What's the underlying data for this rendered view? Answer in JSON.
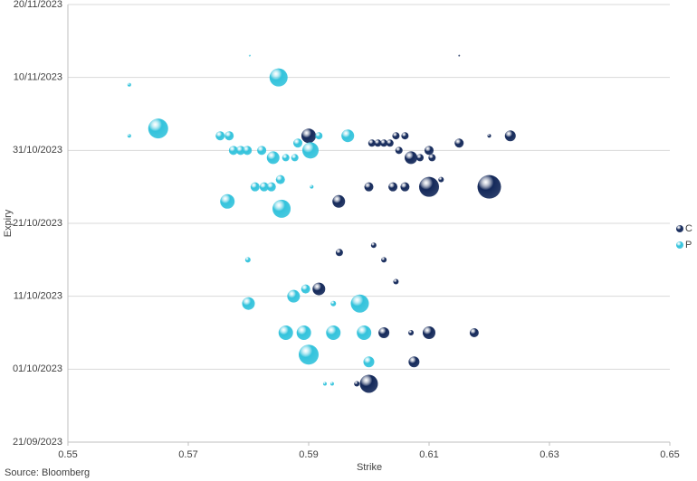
{
  "chart_data": {
    "type": "bubble",
    "x_label": "Strike",
    "y_label": "Expiry",
    "source": "Source: Bloomberg",
    "xlim": [
      0.55,
      0.65
    ],
    "xticks": [
      0.55,
      0.57,
      0.59,
      0.61,
      0.63,
      0.65
    ],
    "ylim": [
      "2023-09-21",
      "2023-11-20"
    ],
    "yticks": [
      {
        "value": "2023-09-21",
        "label": "21/09/2023"
      },
      {
        "value": "2023-10-01",
        "label": "01/10/2023"
      },
      {
        "value": "2023-10-11",
        "label": "11/10/2023"
      },
      {
        "value": "2023-10-21",
        "label": "21/10/2023"
      },
      {
        "value": "2023-10-31",
        "label": "31/10/2023"
      },
      {
        "value": "2023-11-10",
        "label": "10/11/2023"
      },
      {
        "value": "2023-11-20",
        "label": "20/11/2023"
      }
    ],
    "grid": true,
    "legend": "right",
    "series": [
      {
        "name": "C",
        "color": "#14295a",
        "x": [
          0.62,
          0.61,
          0.6,
          0.59,
          0.595,
          0.5917,
          0.61,
          0.6075,
          0.615,
          0.6235,
          0.607,
          0.61,
          0.6175,
          0.6025,
          0.606,
          0.604,
          0.6,
          0.612,
          0.62,
          0.6005,
          0.6015,
          0.6025,
          0.6035,
          0.6045,
          0.606,
          0.605,
          0.6085,
          0.6105,
          0.6025,
          0.5951,
          0.6008,
          0.6045,
          0.615,
          0.598,
          0.607
        ],
        "values": [
          "2023-10-26",
          "2023-10-26",
          "2023-09-29",
          "2023-11-02",
          "2023-10-24",
          "2023-10-12",
          "2023-10-06",
          "2023-10-02",
          "2023-11-01",
          "2023-11-02",
          "2023-10-30",
          "2023-10-31",
          "2023-10-06",
          "2023-10-06",
          "2023-10-26",
          "2023-10-26",
          "2023-10-26",
          "2023-10-27",
          "2023-11-02",
          "2023-11-01",
          "2023-11-01",
          "2023-11-01",
          "2023-11-01",
          "2023-11-02",
          "2023-11-02",
          "2023-10-31",
          "2023-10-30",
          "2023-10-30",
          "2023-10-16",
          "2023-10-17",
          "2023-10-18",
          "2023-10-13",
          "2023-11-13",
          "2023-09-29",
          "2023-10-06"
        ],
        "sizes": [
          13,
          11,
          10,
          8,
          7,
          7,
          7,
          6,
          5,
          6,
          7,
          5,
          5,
          6,
          5,
          5,
          5,
          3,
          2,
          4,
          4,
          4,
          4,
          4,
          4,
          4,
          4,
          4,
          3,
          4,
          3,
          3,
          1,
          3,
          3
        ]
      },
      {
        "name": "P",
        "color": "#34c3dc",
        "x": [
          0.585,
          0.565,
          0.5855,
          0.5765,
          0.5985,
          0.59,
          0.6,
          0.5903,
          0.5965,
          0.58,
          0.5875,
          0.5895,
          0.5862,
          0.5892,
          0.5941,
          0.5992,
          0.5841,
          0.5775,
          0.5787,
          0.5798,
          0.5822,
          0.5753,
          0.5768,
          0.5811,
          0.5826,
          0.5838,
          0.5853,
          0.5602,
          0.5602,
          0.5802,
          0.5799,
          0.5927,
          0.5939,
          0.5917,
          0.5862,
          0.5877,
          0.5941,
          0.5905,
          0.5882
        ],
        "values": [
          "2023-11-10",
          "2023-11-03",
          "2023-10-23",
          "2023-10-24",
          "2023-10-10",
          "2023-10-03",
          "2023-10-02",
          "2023-10-31",
          "2023-11-02",
          "2023-10-10",
          "2023-10-11",
          "2023-10-12",
          "2023-10-06",
          "2023-10-06",
          "2023-10-06",
          "2023-10-06",
          "2023-10-30",
          "2023-10-31",
          "2023-10-31",
          "2023-10-31",
          "2023-10-31",
          "2023-11-02",
          "2023-11-02",
          "2023-10-26",
          "2023-10-26",
          "2023-10-26",
          "2023-10-27",
          "2023-11-09",
          "2023-11-02",
          "2023-11-13",
          "2023-10-16",
          "2023-09-29",
          "2023-09-29",
          "2023-11-02",
          "2023-10-30",
          "2023-10-30",
          "2023-10-10",
          "2023-10-26",
          "2023-11-01"
        ],
        "sizes": [
          10,
          11,
          10,
          8,
          10,
          11,
          6,
          9,
          7,
          7,
          7,
          5,
          8,
          8,
          8,
          8,
          7,
          5,
          5,
          5,
          5,
          5,
          5,
          5,
          5,
          5,
          5,
          2,
          2,
          1,
          3,
          2,
          2,
          4,
          4,
          4,
          3,
          2,
          5
        ]
      }
    ]
  }
}
